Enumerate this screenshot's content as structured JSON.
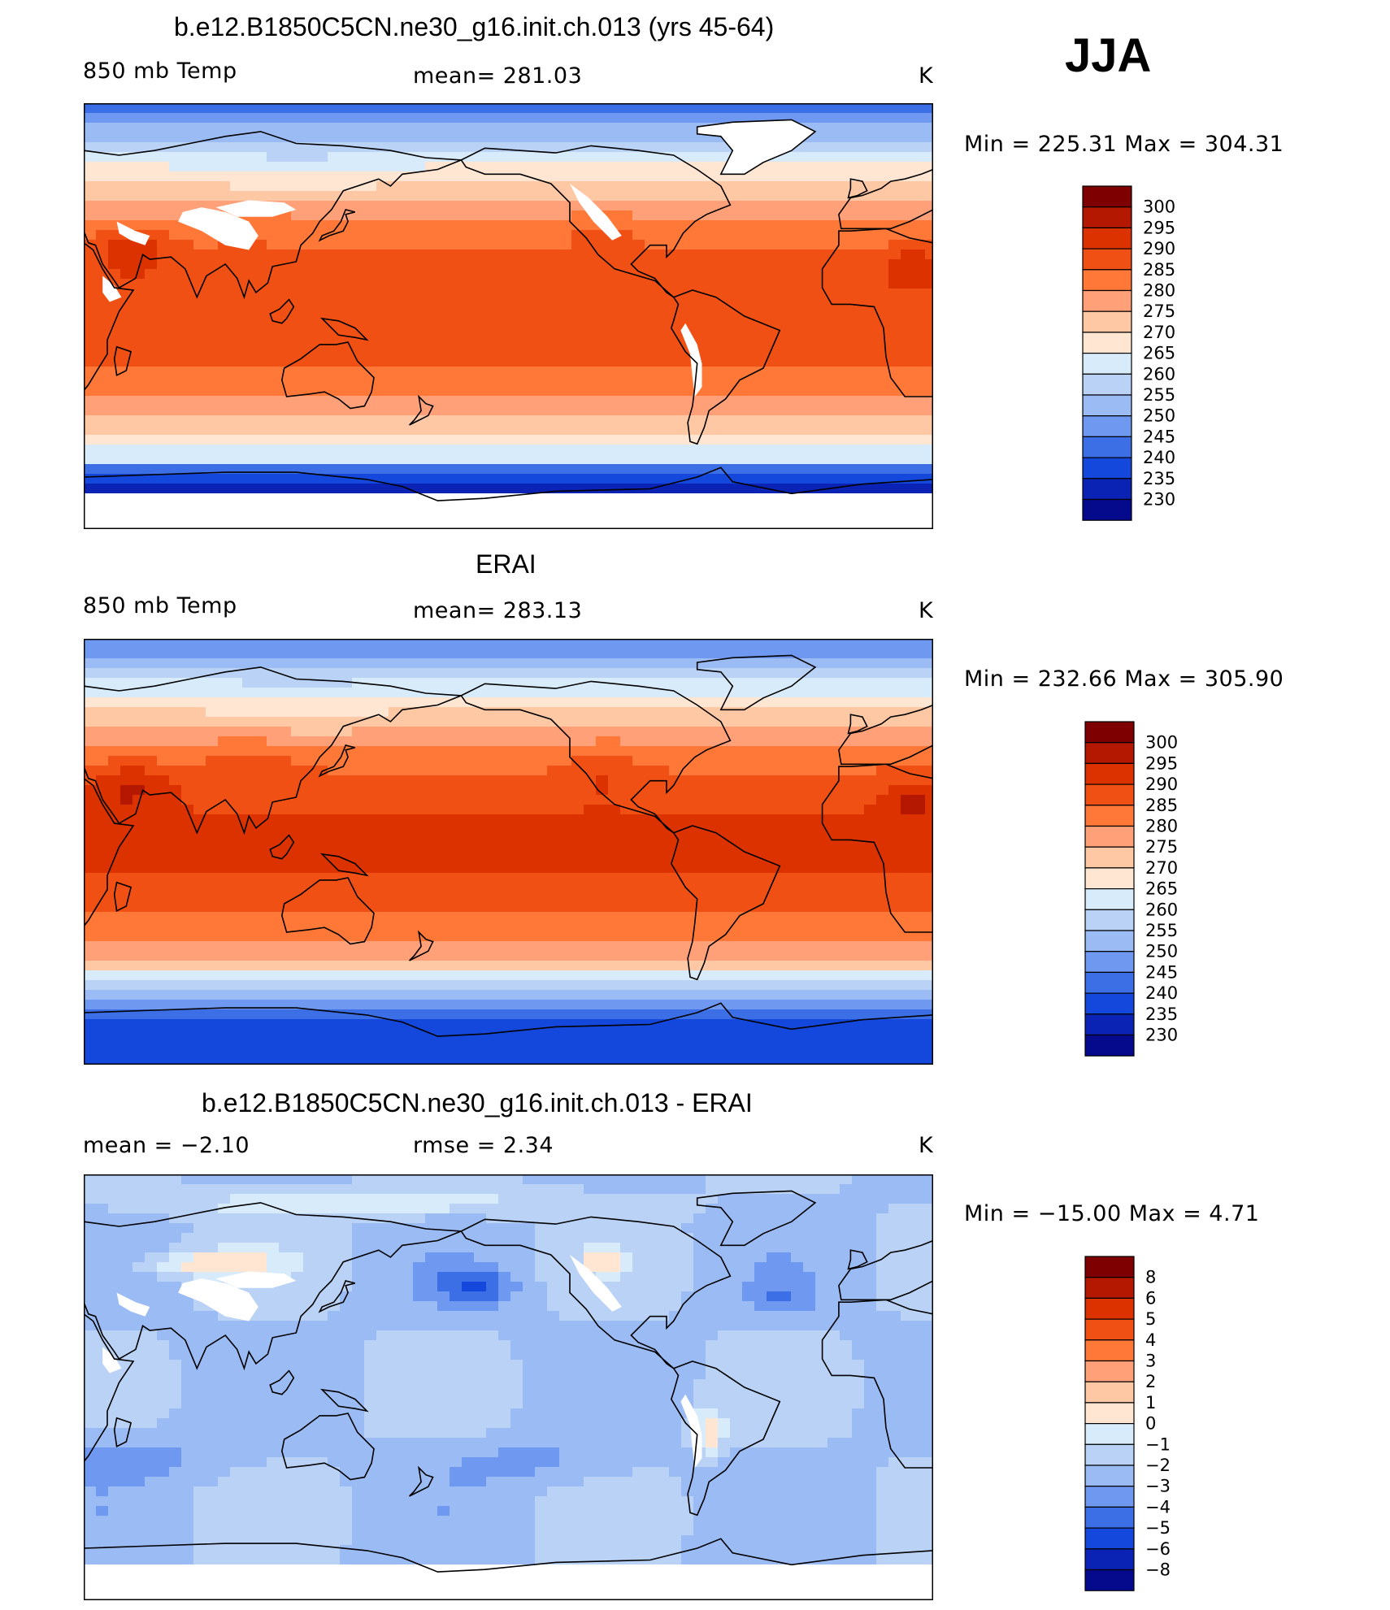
{
  "season_label": "JJA",
  "panels": [
    {
      "id": "model",
      "title": "b.e12.B1850C5CN.ne30_g16.init.ch.013 (yrs 45-64)",
      "left_label": "850 mb Temp",
      "center_label": "mean=  281.03",
      "units": "K",
      "minmax": "Min  =  225.31  Max  =  304.31",
      "colorbar": {
        "labels": [
          "300",
          "295",
          "290",
          "285",
          "280",
          "275",
          "270",
          "265",
          "260",
          "255",
          "250",
          "245",
          "240",
          "235",
          "230"
        ]
      }
    },
    {
      "id": "obs",
      "title": "ERAI",
      "left_label": "850 mb Temp",
      "center_label": "mean=  283.13",
      "units": "K",
      "minmax": "Min  =  232.66  Max  =  305.90",
      "colorbar": {
        "labels": [
          "300",
          "295",
          "290",
          "285",
          "280",
          "275",
          "270",
          "265",
          "260",
          "255",
          "250",
          "245",
          "240",
          "235",
          "230"
        ]
      }
    },
    {
      "id": "diff",
      "title": "b.e12.B1850C5CN.ne30_g16.init.ch.013 - ERAI",
      "left_label": "mean  =     −2.10",
      "center_label": "rmse  =     2.34",
      "units": "K",
      "minmax": "Min  =  −15.00  Max  =     4.71",
      "colorbar": {
        "labels": [
          "8",
          "6",
          "5",
          "4",
          "3",
          "2",
          "1",
          "0",
          "−1",
          "−2",
          "−3",
          "−4",
          "−5",
          "−6",
          "−8"
        ]
      }
    }
  ],
  "colors": {
    "scale": [
      "#7f0000",
      "#b41800",
      "#dc3200",
      "#f05014",
      "#ff7837",
      "#ffa078",
      "#ffc8a5",
      "#ffe6d2",
      "#d8ebfa",
      "#b9d2f5",
      "#9bbbf5",
      "#6f98f0",
      "#3c6ee6",
      "#1447dc",
      "#0a23b4",
      "#050a8c"
    ],
    "land_mask": "#ffffff",
    "coast": "#000000"
  }
}
